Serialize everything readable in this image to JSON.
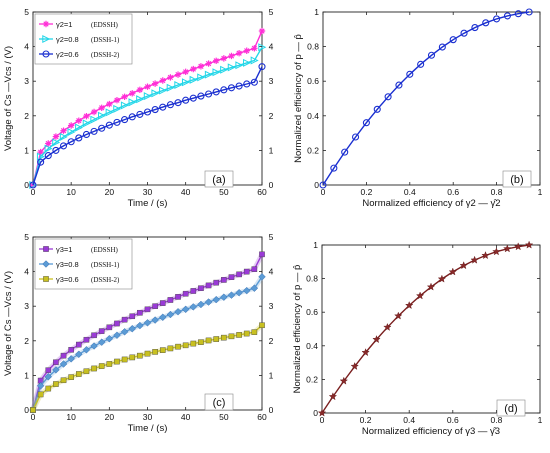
{
  "chart_data": [
    {
      "panel": "(a)",
      "type": "line",
      "xlabel": "Time / (s)",
      "ylabel": "Voltage of  Cs —Vcs / (V)",
      "xlim": [
        0,
        60
      ],
      "ylim": [
        0,
        5
      ],
      "xticks": [
        "0",
        "10",
        "20",
        "30",
        "40",
        "50",
        "60"
      ],
      "yticks": [
        "0",
        "1",
        "2",
        "3",
        "4",
        "5"
      ],
      "yticks_right": [
        "0",
        "1",
        "2",
        "3",
        "4",
        "5"
      ],
      "grid": false,
      "legend": "top-left",
      "series": [
        {
          "name": "γ2=1",
          "note": "(EDSSH)",
          "color": "#ff2fd6",
          "marker": "asterisk",
          "x": [
            0,
            2,
            4,
            6,
            8,
            10,
            12,
            14,
            16,
            18,
            20,
            22,
            24,
            26,
            28,
            30,
            32,
            34,
            36,
            38,
            40,
            42,
            44,
            46,
            48,
            50,
            52,
            54,
            56,
            58,
            60
          ],
          "y": [
            0,
            0.95,
            1.2,
            1.4,
            1.57,
            1.72,
            1.86,
            1.99,
            2.11,
            2.23,
            2.34,
            2.45,
            2.55,
            2.65,
            2.75,
            2.84,
            2.93,
            3.02,
            3.11,
            3.19,
            3.27,
            3.35,
            3.43,
            3.51,
            3.59,
            3.66,
            3.73,
            3.81,
            3.88,
            3.95,
            4.45
          ]
        },
        {
          "name": "γ2=0.8",
          "note": "(DSSH-1)",
          "color": "#22d6e8",
          "marker": "triangle",
          "x": [
            0,
            2,
            4,
            6,
            8,
            10,
            12,
            14,
            16,
            18,
            20,
            22,
            24,
            26,
            28,
            30,
            32,
            34,
            36,
            38,
            40,
            42,
            44,
            46,
            48,
            50,
            52,
            54,
            56,
            58,
            60
          ],
          "y": [
            0,
            0.82,
            1.05,
            1.23,
            1.39,
            1.53,
            1.66,
            1.78,
            1.89,
            2.0,
            2.1,
            2.2,
            2.3,
            2.39,
            2.48,
            2.57,
            2.65,
            2.73,
            2.81,
            2.89,
            2.97,
            3.04,
            3.11,
            3.19,
            3.26,
            3.33,
            3.4,
            3.46,
            3.53,
            3.6,
            3.98
          ]
        },
        {
          "name": "γ2=0.6",
          "note": "(DSSH-2)",
          "color": "#1a2fd0",
          "marker": "circle",
          "x": [
            0,
            2,
            4,
            6,
            8,
            10,
            12,
            14,
            16,
            18,
            20,
            22,
            24,
            26,
            28,
            30,
            32,
            34,
            36,
            38,
            40,
            42,
            44,
            46,
            48,
            50,
            52,
            54,
            56,
            58,
            60
          ],
          "y": [
            0,
            0.66,
            0.85,
            1.0,
            1.13,
            1.25,
            1.36,
            1.46,
            1.55,
            1.64,
            1.73,
            1.81,
            1.89,
            1.97,
            2.04,
            2.11,
            2.18,
            2.25,
            2.32,
            2.38,
            2.45,
            2.51,
            2.57,
            2.63,
            2.69,
            2.75,
            2.81,
            2.86,
            2.92,
            2.97,
            3.42
          ]
        }
      ]
    },
    {
      "panel": "(b)",
      "type": "line",
      "xlabel": "Normalized efficiency of  γ2 — γ̂2",
      "ylabel": "Normalized efficiency of  p — p̂",
      "xlim": [
        0,
        1
      ],
      "ylim": [
        0,
        1
      ],
      "xticks": [
        "0",
        "0.2",
        "0.4",
        "0.6",
        "0.8",
        "1"
      ],
      "yticks": [
        "0",
        "0.2",
        "0.4",
        "0.6",
        "0.8",
        "1"
      ],
      "grid": false,
      "series": [
        {
          "color": "#1a2fd0",
          "marker": "circle",
          "x": [
            0,
            0.05,
            0.1,
            0.15,
            0.2,
            0.25,
            0.3,
            0.35,
            0.4,
            0.45,
            0.5,
            0.55,
            0.6,
            0.65,
            0.7,
            0.75,
            0.8,
            0.85,
            0.9,
            0.95
          ],
          "y": [
            0,
            0.0975,
            0.19,
            0.2775,
            0.36,
            0.4375,
            0.51,
            0.5775,
            0.64,
            0.6975,
            0.75,
            0.7975,
            0.84,
            0.8775,
            0.91,
            0.9375,
            0.96,
            0.9775,
            0.99,
            1.0
          ]
        }
      ]
    },
    {
      "panel": "(c)",
      "type": "line",
      "xlabel": "Time / (s)",
      "ylabel": "Voltage of  Cs —Vcs / (V)",
      "xlim": [
        0,
        60
      ],
      "ylim": [
        0,
        5
      ],
      "xticks": [
        "0",
        "10",
        "20",
        "30",
        "40",
        "50",
        "60"
      ],
      "yticks": [
        "0",
        "1",
        "2",
        "3",
        "4",
        "5"
      ],
      "yticks_right": [
        "0",
        "1",
        "2",
        "3",
        "4",
        "5"
      ],
      "grid": false,
      "legend": "top-left",
      "series": [
        {
          "name": "γ3=1",
          "note": "(EDSSH)",
          "color": "#9a3ad6",
          "marker": "square",
          "x": [
            0,
            2,
            4,
            6,
            8,
            10,
            12,
            14,
            16,
            18,
            20,
            22,
            24,
            26,
            28,
            30,
            32,
            34,
            36,
            38,
            40,
            42,
            44,
            46,
            48,
            50,
            52,
            54,
            56,
            58,
            60
          ],
          "y": [
            0,
            0.85,
            1.15,
            1.38,
            1.57,
            1.74,
            1.89,
            2.03,
            2.16,
            2.28,
            2.39,
            2.5,
            2.61,
            2.71,
            2.81,
            2.91,
            3.0,
            3.09,
            3.18,
            3.27,
            3.36,
            3.44,
            3.52,
            3.6,
            3.68,
            3.76,
            3.84,
            3.92,
            4.0,
            4.07,
            4.5
          ]
        },
        {
          "name": "γ3=0.8",
          "note": "(DSSH-1)",
          "color": "#5b9bd5",
          "marker": "diamond",
          "x": [
            0,
            2,
            4,
            6,
            8,
            10,
            12,
            14,
            16,
            18,
            20,
            22,
            24,
            26,
            28,
            30,
            32,
            34,
            36,
            38,
            40,
            42,
            44,
            46,
            48,
            50,
            52,
            54,
            56,
            58,
            60
          ],
          "y": [
            0,
            0.7,
            0.96,
            1.16,
            1.33,
            1.48,
            1.61,
            1.74,
            1.85,
            1.96,
            2.06,
            2.16,
            2.26,
            2.35,
            2.44,
            2.52,
            2.6,
            2.68,
            2.76,
            2.84,
            2.91,
            2.98,
            3.05,
            3.12,
            3.19,
            3.26,
            3.32,
            3.39,
            3.45,
            3.52,
            3.85
          ]
        },
        {
          "name": "γ3=0.6",
          "note": "(DSSH-2)",
          "color": "#c8c020",
          "marker": "square",
          "x": [
            0,
            2,
            4,
            6,
            8,
            10,
            12,
            14,
            16,
            18,
            20,
            22,
            24,
            26,
            28,
            30,
            32,
            34,
            36,
            38,
            40,
            42,
            44,
            46,
            48,
            50,
            52,
            54,
            56,
            58,
            60
          ],
          "y": [
            0,
            0.45,
            0.62,
            0.75,
            0.86,
            0.95,
            1.04,
            1.12,
            1.2,
            1.27,
            1.33,
            1.4,
            1.46,
            1.52,
            1.57,
            1.63,
            1.68,
            1.73,
            1.78,
            1.83,
            1.87,
            1.92,
            1.96,
            2.01,
            2.05,
            2.09,
            2.13,
            2.17,
            2.21,
            2.25,
            2.45
          ]
        }
      ]
    },
    {
      "panel": "(d)",
      "type": "line",
      "xlabel": "Normalized efficiency of  γ3 — γ̂3",
      "ylabel": "Normalized efficiency of  p — p̂",
      "xlim": [
        0,
        1
      ],
      "ylim": [
        0,
        1
      ],
      "xticks": [
        "0",
        "0.2",
        "0.4",
        "0.6",
        "0.8",
        "1"
      ],
      "yticks": [
        "0",
        "0.2",
        "0.4",
        "0.6",
        "0.8",
        "1"
      ],
      "grid": false,
      "series": [
        {
          "color": "#7a1f1f",
          "marker": "star",
          "x": [
            0,
            0.05,
            0.1,
            0.15,
            0.2,
            0.25,
            0.3,
            0.35,
            0.4,
            0.45,
            0.5,
            0.55,
            0.6,
            0.65,
            0.7,
            0.75,
            0.8,
            0.85,
            0.9,
            0.95
          ],
          "y": [
            0,
            0.0975,
            0.19,
            0.2775,
            0.36,
            0.4375,
            0.51,
            0.5775,
            0.64,
            0.6975,
            0.75,
            0.7975,
            0.84,
            0.8775,
            0.91,
            0.9375,
            0.96,
            0.9775,
            0.99,
            1.0
          ]
        }
      ]
    }
  ]
}
